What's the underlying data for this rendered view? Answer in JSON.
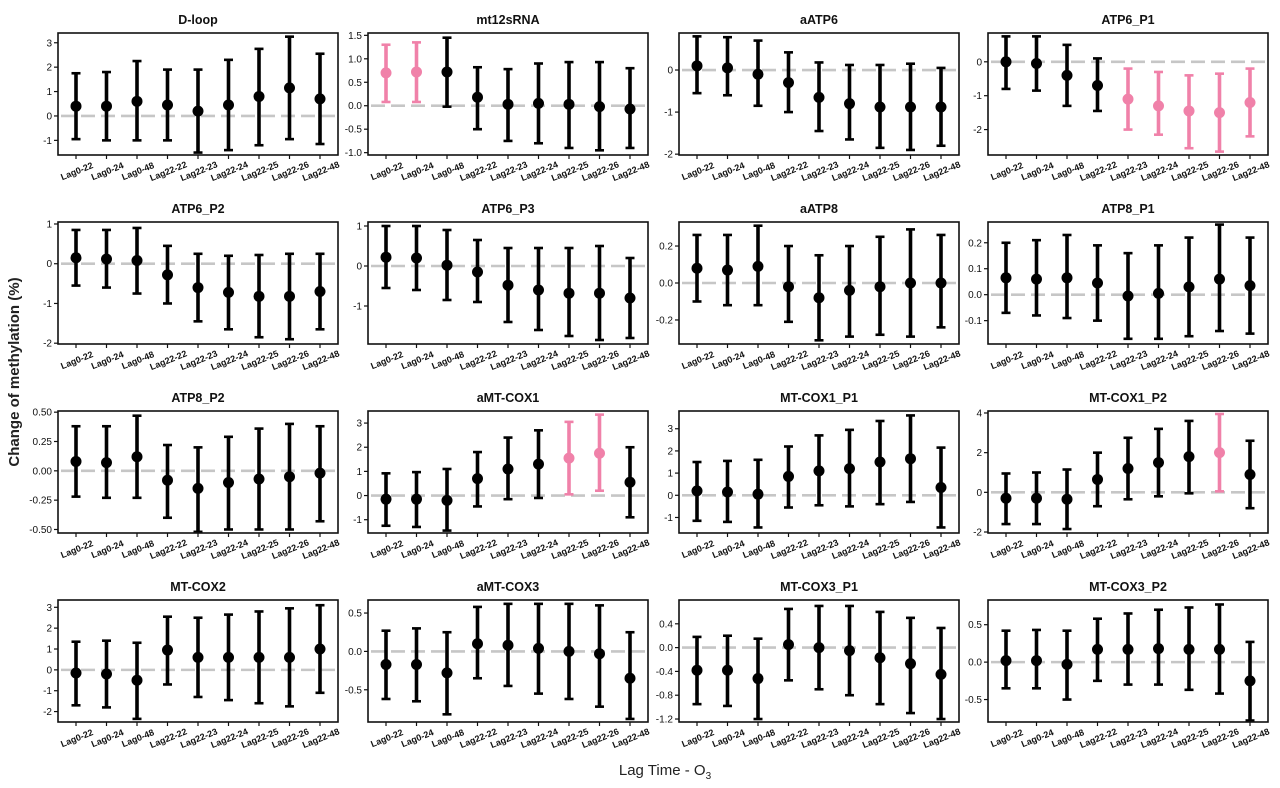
{
  "figure": {
    "ylabel": "Change of methylation (%)",
    "xlabel": "Lag Time - O",
    "xlabel_subscript": "3"
  },
  "colors": {
    "default": "#000000",
    "highlighted": "#f081a9",
    "reference_line": "#c6c6c6"
  },
  "chart_data": [
    {
      "type": "scatter",
      "title": "D-loop",
      "categories": [
        "Lag0-22",
        "Lag0-24",
        "Lag0-48",
        "Lag22-22",
        "Lag22-23",
        "Lag22-24",
        "Lag22-25",
        "Lag22-26",
        "Lag22-48"
      ],
      "estimate": [
        0.4,
        0.4,
        0.6,
        0.45,
        0.2,
        0.45,
        0.8,
        1.15,
        0.7
      ],
      "ci_lower": [
        -0.95,
        -1.0,
        -1.0,
        -1.0,
        -1.5,
        -1.4,
        -1.2,
        -0.95,
        -1.15
      ],
      "ci_upper": [
        1.75,
        1.8,
        2.25,
        1.9,
        1.9,
        2.3,
        2.75,
        3.25,
        2.55
      ],
      "highlighted": [
        false,
        false,
        false,
        false,
        false,
        false,
        false,
        false,
        false
      ],
      "ylim": [
        -1.6,
        3.4
      ],
      "yticks": [
        "3",
        "2",
        "1",
        "0",
        "-1"
      ],
      "reference_y": 0
    },
    {
      "type": "scatter",
      "title": "mt12sRNA",
      "categories": [
        "Lag0-22",
        "Lag0-24",
        "Lag0-48",
        "Lag22-22",
        "Lag22-23",
        "Lag22-24",
        "Lag22-25",
        "Lag22-26",
        "Lag22-48"
      ],
      "estimate": [
        0.7,
        0.72,
        0.72,
        0.18,
        0.03,
        0.05,
        0.03,
        -0.02,
        -0.07
      ],
      "ci_lower": [
        0.08,
        0.08,
        -0.02,
        -0.5,
        -0.75,
        -0.8,
        -0.9,
        -0.95,
        -0.9
      ],
      "ci_upper": [
        1.3,
        1.35,
        1.45,
        0.82,
        0.78,
        0.9,
        0.93,
        0.93,
        0.8
      ],
      "highlighted": [
        true,
        true,
        false,
        false,
        false,
        false,
        false,
        false,
        false
      ],
      "ylim": [
        -1.05,
        1.55
      ],
      "yticks": [
        "1.5",
        "1.0",
        "0.5",
        "0.0",
        "-0.5",
        "-1.0"
      ],
      "reference_y": 0
    },
    {
      "type": "scatter",
      "title": "aATP6",
      "categories": [
        "Lag0-22",
        "Lag0-24",
        "Lag0-48",
        "Lag22-22",
        "Lag22-23",
        "Lag22-24",
        "Lag22-25",
        "Lag22-26",
        "Lag22-48"
      ],
      "estimate": [
        0.1,
        0.05,
        -0.1,
        -0.3,
        -0.65,
        -0.8,
        -0.88,
        -0.88,
        -0.88
      ],
      "ci_lower": [
        -0.55,
        -0.6,
        -0.85,
        -1.0,
        -1.45,
        -1.65,
        -1.85,
        -1.9,
        -1.8
      ],
      "ci_upper": [
        0.8,
        0.78,
        0.7,
        0.42,
        0.18,
        0.12,
        0.12,
        0.15,
        0.05
      ],
      "highlighted": [
        false,
        false,
        false,
        false,
        false,
        false,
        false,
        false,
        false
      ],
      "ylim": [
        -2.02,
        0.88
      ],
      "yticks": [
        "0",
        "-1",
        "-2"
      ],
      "reference_y": 0
    },
    {
      "type": "scatter",
      "title": "ATP6_P1",
      "categories": [
        "Lag0-22",
        "Lag0-24",
        "Lag0-48",
        "Lag22-22",
        "Lag22-23",
        "Lag22-24",
        "Lag22-25",
        "Lag22-26",
        "Lag22-48"
      ],
      "estimate": [
        0.0,
        -0.05,
        -0.4,
        -0.7,
        -1.1,
        -1.3,
        -1.45,
        -1.5,
        -1.2
      ],
      "ci_lower": [
        -0.8,
        -0.85,
        -1.3,
        -1.45,
        -2.0,
        -2.15,
        -2.55,
        -2.65,
        -2.2
      ],
      "ci_upper": [
        0.75,
        0.75,
        0.5,
        0.1,
        -0.2,
        -0.3,
        -0.4,
        -0.35,
        -0.2
      ],
      "highlighted": [
        false,
        false,
        false,
        false,
        true,
        true,
        true,
        true,
        true
      ],
      "ylim": [
        -2.75,
        0.85
      ],
      "yticks": [
        "0",
        "-1",
        "-2"
      ],
      "reference_y": 0
    },
    {
      "type": "scatter",
      "title": "ATP6_P2",
      "categories": [
        "Lag0-22",
        "Lag0-24",
        "Lag0-48",
        "Lag22-22",
        "Lag22-23",
        "Lag22-24",
        "Lag22-25",
        "Lag22-26",
        "Lag22-48"
      ],
      "estimate": [
        0.15,
        0.12,
        0.08,
        -0.28,
        -0.6,
        -0.72,
        -0.82,
        -0.82,
        -0.7
      ],
      "ci_lower": [
        -0.55,
        -0.6,
        -0.75,
        -1.0,
        -1.45,
        -1.65,
        -1.85,
        -1.9,
        -1.65
      ],
      "ci_upper": [
        0.85,
        0.85,
        0.9,
        0.45,
        0.25,
        0.2,
        0.22,
        0.25,
        0.25
      ],
      "highlighted": [
        false,
        false,
        false,
        false,
        false,
        false,
        false,
        false,
        false
      ],
      "ylim": [
        -2.02,
        1.05
      ],
      "yticks": [
        "1",
        "0",
        "-1",
        "-2"
      ],
      "reference_y": 0
    },
    {
      "type": "scatter",
      "title": "ATP6_P3",
      "categories": [
        "Lag0-22",
        "Lag0-24",
        "Lag0-48",
        "Lag22-22",
        "Lag22-23",
        "Lag22-24",
        "Lag22-25",
        "Lag22-26",
        "Lag22-48"
      ],
      "estimate": [
        0.22,
        0.2,
        0.02,
        -0.15,
        -0.48,
        -0.6,
        -0.68,
        -0.68,
        -0.8
      ],
      "ci_lower": [
        -0.55,
        -0.6,
        -0.85,
        -0.9,
        -1.4,
        -1.6,
        -1.75,
        -1.85,
        -1.8
      ],
      "ci_upper": [
        1.0,
        1.0,
        0.9,
        0.65,
        0.45,
        0.45,
        0.45,
        0.5,
        0.2
      ],
      "highlighted": [
        false,
        false,
        false,
        false,
        false,
        false,
        false,
        false,
        false
      ],
      "ylim": [
        -1.95,
        1.1
      ],
      "yticks": [
        "1",
        "0",
        "-1"
      ],
      "reference_y": 0
    },
    {
      "type": "scatter",
      "title": "aATP8",
      "categories": [
        "Lag0-22",
        "Lag0-24",
        "Lag0-48",
        "Lag22-22",
        "Lag22-23",
        "Lag22-24",
        "Lag22-25",
        "Lag22-26",
        "Lag22-48"
      ],
      "estimate": [
        0.08,
        0.07,
        0.09,
        -0.02,
        -0.08,
        -0.04,
        -0.02,
        0.0,
        0.0
      ],
      "ci_lower": [
        -0.1,
        -0.12,
        -0.12,
        -0.21,
        -0.31,
        -0.29,
        -0.28,
        -0.29,
        -0.24
      ],
      "ci_upper": [
        0.26,
        0.26,
        0.31,
        0.2,
        0.15,
        0.2,
        0.25,
        0.29,
        0.26
      ],
      "highlighted": [
        false,
        false,
        false,
        false,
        false,
        false,
        false,
        false,
        false
      ],
      "ylim": [
        -0.33,
        0.33
      ],
      "yticks": [
        "0.2",
        "0.0",
        "-0.2"
      ],
      "reference_y": 0
    },
    {
      "type": "scatter",
      "title": "ATP8_P1",
      "categories": [
        "Lag0-22",
        "Lag0-24",
        "Lag0-48",
        "Lag22-22",
        "Lag22-23",
        "Lag22-24",
        "Lag22-25",
        "Lag22-26",
        "Lag22-48"
      ],
      "estimate": [
        0.065,
        0.06,
        0.065,
        0.045,
        -0.005,
        0.005,
        0.03,
        0.06,
        0.035
      ],
      "ci_lower": [
        -0.07,
        -0.08,
        -0.09,
        -0.1,
        -0.17,
        -0.17,
        -0.16,
        -0.14,
        -0.15
      ],
      "ci_upper": [
        0.2,
        0.21,
        0.23,
        0.19,
        0.16,
        0.19,
        0.22,
        0.27,
        0.22
      ],
      "highlighted": [
        false,
        false,
        false,
        false,
        false,
        false,
        false,
        false,
        false
      ],
      "ylim": [
        -0.19,
        0.28
      ],
      "yticks": [
        "0.2",
        "0.1",
        "0.0",
        "-0.1"
      ],
      "reference_y": 0
    },
    {
      "type": "scatter",
      "title": "ATP8_P2",
      "categories": [
        "Lag0-22",
        "Lag0-24",
        "Lag0-48",
        "Lag22-22",
        "Lag22-23",
        "Lag22-24",
        "Lag22-25",
        "Lag22-26",
        "Lag22-48"
      ],
      "estimate": [
        0.08,
        0.07,
        0.12,
        -0.08,
        -0.15,
        -0.1,
        -0.07,
        -0.05,
        -0.02
      ],
      "ci_lower": [
        -0.22,
        -0.23,
        -0.23,
        -0.4,
        -0.52,
        -0.5,
        -0.5,
        -0.5,
        -0.43
      ],
      "ci_upper": [
        0.38,
        0.38,
        0.47,
        0.22,
        0.2,
        0.29,
        0.36,
        0.4,
        0.38
      ],
      "highlighted": [
        false,
        false,
        false,
        false,
        false,
        false,
        false,
        false,
        false
      ],
      "ylim": [
        -0.53,
        0.51
      ],
      "yticks": [
        "0.50",
        "0.25",
        "0.00",
        "-0.25",
        "-0.50"
      ],
      "reference_y": 0
    },
    {
      "type": "scatter",
      "title": "aMT-COX1",
      "categories": [
        "Lag0-22",
        "Lag0-24",
        "Lag0-48",
        "Lag22-22",
        "Lag22-23",
        "Lag22-24",
        "Lag22-25",
        "Lag22-26",
        "Lag22-48"
      ],
      "estimate": [
        -0.15,
        -0.15,
        -0.2,
        0.7,
        1.1,
        1.3,
        1.55,
        1.75,
        0.55
      ],
      "ci_lower": [
        -1.25,
        -1.3,
        -1.45,
        -0.45,
        -0.15,
        -0.1,
        0.05,
        0.2,
        -0.9
      ],
      "ci_upper": [
        0.92,
        0.97,
        1.1,
        1.8,
        2.4,
        2.7,
        3.05,
        3.35,
        2.0
      ],
      "highlighted": [
        false,
        false,
        false,
        false,
        false,
        false,
        true,
        true,
        false
      ],
      "ylim": [
        -1.55,
        3.5
      ],
      "yticks": [
        "3",
        "2",
        "1",
        "0",
        "-1"
      ],
      "reference_y": 0
    },
    {
      "type": "scatter",
      "title": "MT-COX1_P1",
      "categories": [
        "Lag0-22",
        "Lag0-24",
        "Lag0-48",
        "Lag22-22",
        "Lag22-23",
        "Lag22-24",
        "Lag22-25",
        "Lag22-26",
        "Lag22-48"
      ],
      "estimate": [
        0.2,
        0.15,
        0.05,
        0.85,
        1.1,
        1.2,
        1.5,
        1.65,
        0.35
      ],
      "ci_lower": [
        -1.15,
        -1.2,
        -1.45,
        -0.55,
        -0.45,
        -0.5,
        -0.4,
        -0.3,
        -1.45
      ],
      "ci_upper": [
        1.5,
        1.55,
        1.6,
        2.2,
        2.7,
        2.95,
        3.35,
        3.6,
        2.15
      ],
      "highlighted": [
        false,
        false,
        false,
        false,
        false,
        false,
        false,
        false,
        false
      ],
      "ylim": [
        -1.7,
        3.8
      ],
      "yticks": [
        "3",
        "2",
        "1",
        "0",
        "-1"
      ],
      "reference_y": 0
    },
    {
      "type": "scatter",
      "title": "MT-COX1_P2",
      "categories": [
        "Lag0-22",
        "Lag0-24",
        "Lag0-48",
        "Lag22-22",
        "Lag22-23",
        "Lag22-24",
        "Lag22-25",
        "Lag22-26",
        "Lag22-48"
      ],
      "estimate": [
        -0.3,
        -0.3,
        -0.35,
        0.65,
        1.2,
        1.5,
        1.8,
        2.0,
        0.9
      ],
      "ci_lower": [
        -1.6,
        -1.6,
        -1.85,
        -0.7,
        -0.35,
        -0.2,
        -0.05,
        0.05,
        -0.8
      ],
      "ci_upper": [
        0.95,
        1.0,
        1.15,
        2.0,
        2.75,
        3.2,
        3.6,
        3.95,
        2.6
      ],
      "highlighted": [
        false,
        false,
        false,
        false,
        false,
        false,
        false,
        true,
        false
      ],
      "ylim": [
        -2.05,
        4.1
      ],
      "yticks": [
        "4",
        "2",
        "0",
        "-2"
      ],
      "reference_y": 0
    },
    {
      "type": "scatter",
      "title": "MT-COX2",
      "categories": [
        "Lag0-22",
        "Lag0-24",
        "Lag0-48",
        "Lag22-22",
        "Lag22-23",
        "Lag22-24",
        "Lag22-25",
        "Lag22-26",
        "Lag22-48"
      ],
      "estimate": [
        -0.15,
        -0.2,
        -0.5,
        0.95,
        0.6,
        0.6,
        0.6,
        0.6,
        1.0
      ],
      "ci_lower": [
        -1.7,
        -1.8,
        -2.35,
        -0.7,
        -1.3,
        -1.45,
        -1.6,
        -1.75,
        -1.1
      ],
      "ci_upper": [
        1.35,
        1.4,
        1.3,
        2.55,
        2.5,
        2.65,
        2.8,
        2.95,
        3.1
      ],
      "highlighted": [
        false,
        false,
        false,
        false,
        false,
        false,
        false,
        false,
        false
      ],
      "ylim": [
        -2.5,
        3.35
      ],
      "yticks": [
        "3",
        "2",
        "1",
        "0",
        "-1",
        "-2"
      ],
      "reference_y": 0
    },
    {
      "type": "scatter",
      "title": "aMT-COX3",
      "categories": [
        "Lag0-22",
        "Lag0-24",
        "Lag0-48",
        "Lag22-22",
        "Lag22-23",
        "Lag22-24",
        "Lag22-25",
        "Lag22-26",
        "Lag22-48"
      ],
      "estimate": [
        -0.17,
        -0.17,
        -0.28,
        0.1,
        0.08,
        0.04,
        0.0,
        -0.03,
        -0.35
      ],
      "ci_lower": [
        -0.62,
        -0.65,
        -0.82,
        -0.35,
        -0.45,
        -0.55,
        -0.62,
        -0.72,
        -0.88
      ],
      "ci_upper": [
        0.27,
        0.3,
        0.25,
        0.58,
        0.62,
        0.62,
        0.62,
        0.6,
        0.25
      ],
      "highlighted": [
        false,
        false,
        false,
        false,
        false,
        false,
        false,
        false,
        false
      ],
      "ylim": [
        -0.92,
        0.67
      ],
      "yticks": [
        "0.5",
        "0.0",
        "-0.5"
      ],
      "reference_y": 0
    },
    {
      "type": "scatter",
      "title": "MT-COX3_P1",
      "categories": [
        "Lag0-22",
        "Lag0-24",
        "Lag0-48",
        "Lag22-22",
        "Lag22-23",
        "Lag22-24",
        "Lag22-25",
        "Lag22-26",
        "Lag22-48"
      ],
      "estimate": [
        -0.38,
        -0.38,
        -0.52,
        0.05,
        0.0,
        -0.05,
        -0.17,
        -0.27,
        -0.45
      ],
      "ci_lower": [
        -0.95,
        -0.98,
        -1.2,
        -0.55,
        -0.7,
        -0.8,
        -0.95,
        -1.1,
        -1.2
      ],
      "ci_upper": [
        0.18,
        0.2,
        0.15,
        0.65,
        0.7,
        0.7,
        0.6,
        0.5,
        0.33
      ],
      "highlighted": [
        false,
        false,
        false,
        false,
        false,
        false,
        false,
        false,
        false
      ],
      "ylim": [
        -1.25,
        0.8
      ],
      "yticks": [
        "0.4",
        "0.0",
        "-0.4",
        "-0.8",
        "-1.2"
      ],
      "reference_y": 0
    },
    {
      "type": "scatter",
      "title": "MT-COX3_P2",
      "categories": [
        "Lag0-22",
        "Lag0-24",
        "Lag0-48",
        "Lag22-22",
        "Lag22-23",
        "Lag22-24",
        "Lag22-25",
        "Lag22-26",
        "Lag22-48"
      ],
      "estimate": [
        0.02,
        0.02,
        -0.03,
        0.17,
        0.17,
        0.18,
        0.17,
        0.17,
        -0.25
      ],
      "ci_lower": [
        -0.35,
        -0.35,
        -0.5,
        -0.25,
        -0.3,
        -0.3,
        -0.37,
        -0.42,
        -0.78
      ],
      "ci_upper": [
        0.42,
        0.43,
        0.42,
        0.58,
        0.65,
        0.7,
        0.73,
        0.77,
        0.27
      ],
      "highlighted": [
        false,
        false,
        false,
        false,
        false,
        false,
        false,
        false,
        false
      ],
      "ylim": [
        -0.8,
        0.83
      ],
      "yticks": [
        "0.5",
        "0.0",
        "-0.5"
      ],
      "reference_y": 0
    }
  ]
}
